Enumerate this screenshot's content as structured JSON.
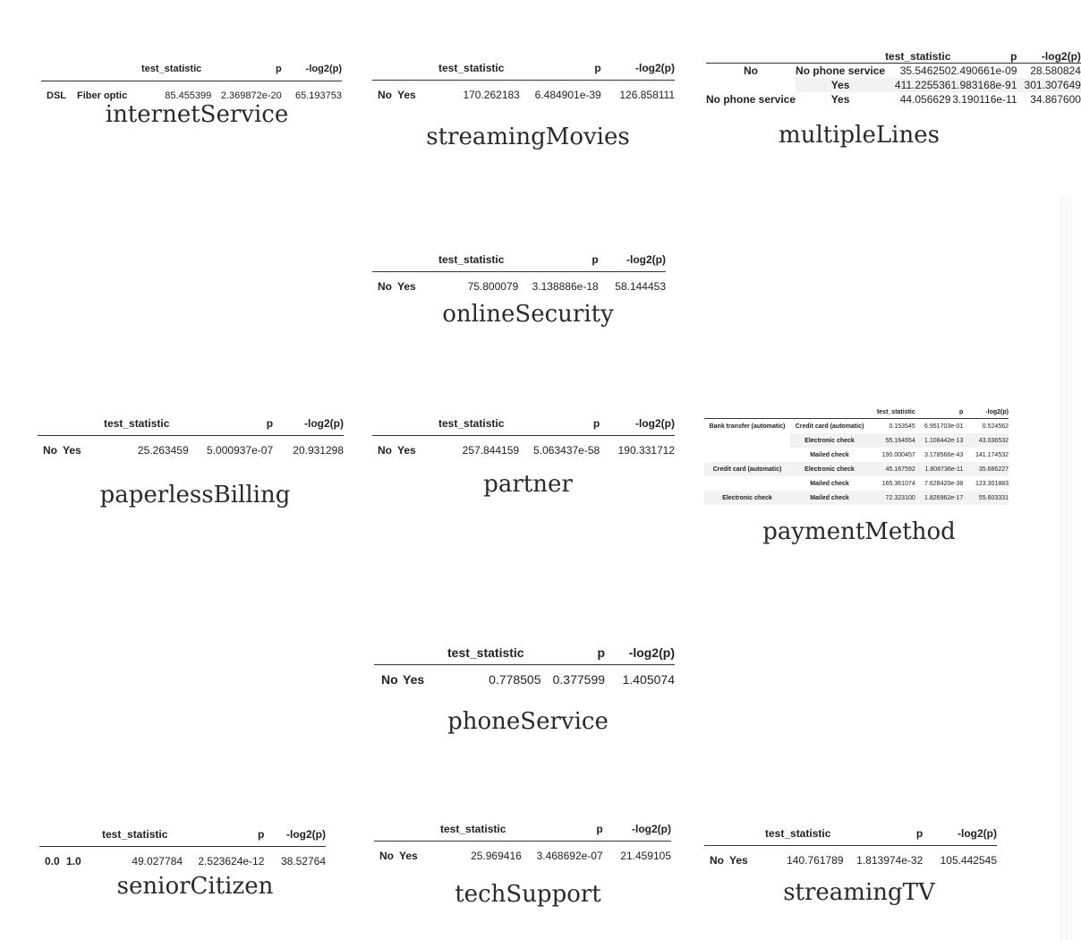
{
  "headers": {
    "test_statistic": "test_statistic",
    "p": "p",
    "neglog": "-log2(p)"
  },
  "internetService": {
    "caption": "internetService",
    "row": {
      "idx0": "DSL",
      "idx1": "Fiber optic",
      "test_statistic": "85.455399",
      "p": "2.369872e-20",
      "neglog": "65.193753"
    }
  },
  "streamingMovies": {
    "caption": "streamingMovies",
    "row": {
      "idx0": "No",
      "idx1": "Yes",
      "test_statistic": "170.262183",
      "p": "6.484901e-39",
      "neglog": "126.858111"
    }
  },
  "multipleLines": {
    "caption": "multipleLines",
    "rows": [
      {
        "idx0": "No",
        "idx1": "No phone service",
        "test_statistic": "35.546250",
        "p": "2.490661e-09",
        "neglog": "28.580824"
      },
      {
        "idx0": "",
        "idx1": "Yes",
        "test_statistic": "411.225536",
        "p": "1.983168e-91",
        "neglog": "301.307649"
      },
      {
        "idx0": "No phone service",
        "idx1": "Yes",
        "test_statistic": "44.056629",
        "p": "3.190116e-11",
        "neglog": "34.867600"
      }
    ]
  },
  "onlineSecurity": {
    "caption": "onlineSecurity",
    "row": {
      "idx0": "No",
      "idx1": "Yes",
      "test_statistic": "75.800079",
      "p": "3.138886e-18",
      "neglog": "58.144453"
    }
  },
  "paperlessBilling": {
    "caption": "paperlessBilling",
    "row": {
      "idx0": "No",
      "idx1": "Yes",
      "test_statistic": "25.263459",
      "p": "5.000937e-07",
      "neglog": "20.931298"
    }
  },
  "partner": {
    "caption": "partner",
    "row": {
      "idx0": "No",
      "idx1": "Yes",
      "test_statistic": "257.844159",
      "p": "5.063437e-58",
      "neglog": "190.331712"
    }
  },
  "paymentMethod": {
    "caption": "paymentMethod",
    "rows": [
      {
        "idx0": "Bank transfer (automatic)",
        "idx1": "Credit card (automatic)",
        "test_statistic": "0.153545",
        "p": "6.951703e-01",
        "neglog": "0.524562"
      },
      {
        "idx0": "",
        "idx1": "Electronic check",
        "test_statistic": "55.164654",
        "p": "1.108442e-13",
        "neglog": "43.036532"
      },
      {
        "idx0": "",
        "idx1": "Mailed check",
        "test_statistic": "190.000457",
        "p": "3.178566e-43",
        "neglog": "141.174532"
      },
      {
        "idx0": "Credit card (automatic)",
        "idx1": "Electronic check",
        "test_statistic": "45.167592",
        "p": "1.808736e-11",
        "neglog": "35.686227"
      },
      {
        "idx0": "",
        "idx1": "Mailed check",
        "test_statistic": "165.361074",
        "p": "7.628420e-38",
        "neglog": "123.301883"
      },
      {
        "idx0": "Electronic check",
        "idx1": "Mailed check",
        "test_statistic": "72.323100",
        "p": "1.826962e-17",
        "neglog": "55.603331"
      }
    ]
  },
  "phoneService": {
    "caption": "phoneService",
    "row": {
      "idx0": "No",
      "idx1": "Yes",
      "test_statistic": "0.778505",
      "p": "0.377599",
      "neglog": "1.405074"
    }
  },
  "seniorCitizen": {
    "caption": "seniorCitizen",
    "row": {
      "idx0": "0.0",
      "idx1": "1.0",
      "test_statistic": "49.027784",
      "p": "2.523624e-12",
      "neglog": "38.52764"
    }
  },
  "techSupport": {
    "caption": "techSupport",
    "row": {
      "idx0": "No",
      "idx1": "Yes",
      "test_statistic": "25.969416",
      "p": "3.468692e-07",
      "neglog": "21.459105"
    }
  },
  "streamingTV": {
    "caption": "streamingTV",
    "row": {
      "idx0": "No",
      "idx1": "Yes",
      "test_statistic": "140.761789",
      "p": "1.813974e-32",
      "neglog": "105.442545"
    }
  }
}
